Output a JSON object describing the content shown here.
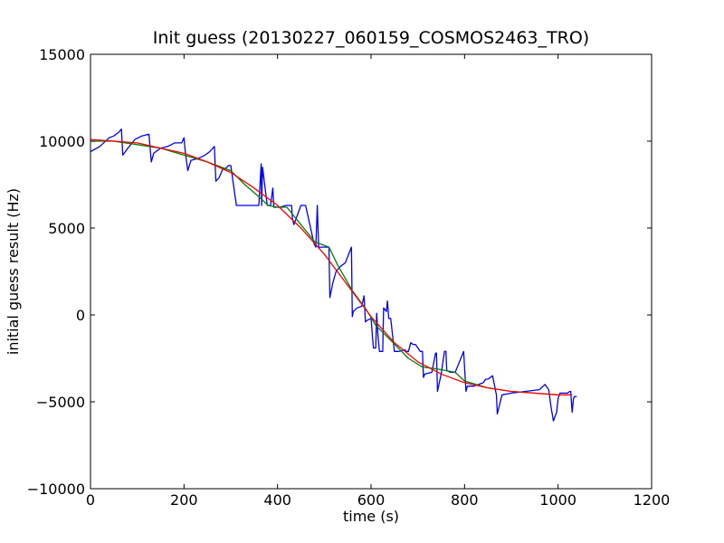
{
  "chart_data": {
    "type": "line",
    "title": "Init guess (20130227_060159_COSMOS2463_TRO)",
    "xlabel": "time (s)",
    "ylabel": "initial guess result (Hz)",
    "xlim": [
      0,
      1200
    ],
    "ylim": [
      -10000,
      15000
    ],
    "xticks": [
      0,
      200,
      400,
      600,
      800,
      1000,
      1200
    ],
    "yticks": [
      -10000,
      -5000,
      0,
      5000,
      10000,
      15000
    ],
    "grid": false,
    "legend": "none",
    "series": [
      {
        "color": "#0000ff",
        "x": [
          0,
          20,
          40,
          50,
          60,
          66,
          69,
          80,
          95,
          110,
          125,
          130,
          135,
          150,
          165,
          180,
          195,
          200,
          203,
          208,
          215,
          230,
          245,
          255,
          265,
          268,
          275,
          283,
          288,
          295,
          300,
          312,
          315,
          330,
          345,
          360,
          365,
          366,
          368,
          378,
          385,
          390,
          392,
          396,
          405,
          418,
          430,
          432,
          435,
          450,
          460,
          478,
          482,
          485,
          488,
          492,
          505,
          510,
          512,
          518,
          525,
          535,
          545,
          558,
          560,
          562,
          570,
          580,
          585,
          588,
          592,
          600,
          605,
          610,
          612,
          615,
          618,
          625,
          627,
          633,
          635,
          638,
          642,
          650,
          660,
          672,
          675,
          680,
          685,
          690,
          695,
          705,
          710,
          712,
          715,
          730,
          738,
          740,
          742,
          750,
          757,
          760,
          762,
          770,
          780,
          798,
          803,
          806,
          820,
          840,
          845,
          850,
          860,
          868,
          870,
          880,
          900,
          930,
          960,
          972,
          980,
          985,
          990,
          997,
          1000,
          1004,
          1010,
          1020,
          1025,
          1027,
          1030,
          1033,
          1035,
          1040
        ],
        "y": [
          9400,
          9700,
          10200,
          10300,
          10500,
          10700,
          9200,
          9600,
          10100,
          10300,
          10400,
          8800,
          9300,
          9600,
          9700,
          9900,
          9900,
          10200,
          9300,
          8300,
          8900,
          9000,
          9200,
          9400,
          9700,
          7700,
          7900,
          8400,
          8400,
          8600,
          8600,
          6300,
          6300,
          6300,
          6300,
          6300,
          8700,
          6300,
          8500,
          6300,
          6300,
          7300,
          6200,
          6200,
          6200,
          6300,
          6300,
          5500,
          5200,
          6300,
          6300,
          4100,
          3900,
          6300,
          3900,
          3900,
          3900,
          3900,
          1000,
          1800,
          2500,
          2800,
          3000,
          3900,
          -100,
          200,
          400,
          500,
          1100,
          -400,
          -300,
          -200,
          -1900,
          -1900,
          100,
          -1300,
          -2100,
          -2100,
          400,
          200,
          800,
          -200,
          -200,
          -2100,
          -2100,
          -2000,
          -2100,
          -2100,
          -1600,
          -1700,
          -1700,
          -2100,
          -2100,
          -3600,
          -3400,
          -3300,
          -2200,
          -2200,
          -4400,
          -3400,
          -2100,
          -2100,
          -3200,
          -3300,
          -3300,
          -2100,
          -4400,
          -4100,
          -4100,
          -3900,
          -3700,
          -3700,
          -3500,
          -4600,
          -5700,
          -4600,
          -4500,
          -4400,
          -4300,
          -4000,
          -4300,
          -5300,
          -6100,
          -5600,
          -4800,
          -4500,
          -4500,
          -4500,
          -4400,
          -4400,
          -5600,
          -4800,
          -4700,
          -4700
        ]
      },
      {
        "color": "#008000",
        "x": [
          0,
          50,
          100,
          150,
          200,
          250,
          300,
          330,
          360,
          380,
          400,
          420,
          450,
          480,
          510,
          530,
          560,
          590,
          610,
          640,
          680,
          710,
          740,
          780,
          800,
          850,
          900,
          950,
          1000
        ],
        "y": [
          10000,
          10000,
          9800,
          9600,
          9200,
          8800,
          8300,
          7500,
          6800,
          6300,
          6200,
          6200,
          5200,
          4200,
          3900,
          2800,
          1400,
          300,
          -600,
          -1400,
          -2500,
          -3000,
          -3100,
          -3300,
          -3800,
          -4200,
          -4400,
          -4500,
          -4600
        ]
      },
      {
        "color": "#ff0000",
        "x": [
          0,
          50,
          100,
          150,
          200,
          250,
          300,
          350,
          400,
          450,
          500,
          550,
          600,
          650,
          700,
          750,
          800,
          850,
          900,
          950,
          1000,
          1030
        ],
        "y": [
          10100,
          10000,
          9900,
          9600,
          9300,
          8800,
          8200,
          7300,
          6300,
          5000,
          3500,
          1700,
          -100,
          -1600,
          -2700,
          -3400,
          -3900,
          -4200,
          -4400,
          -4500,
          -4600,
          -4600
        ]
      }
    ]
  }
}
